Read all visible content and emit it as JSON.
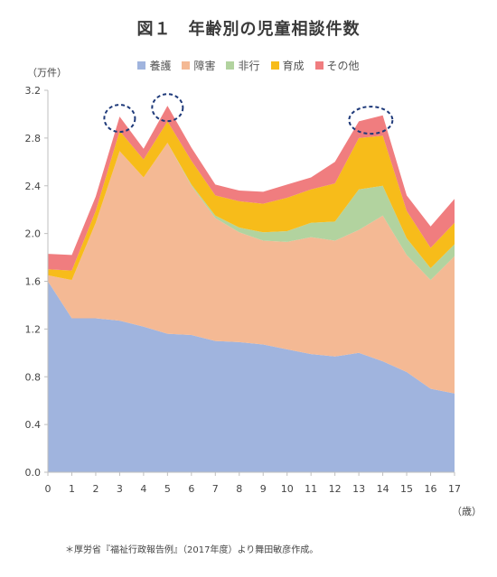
{
  "title": "図１　年齢別の児童相談件数",
  "y_unit": "（万件）",
  "x_unit": "（歳）",
  "note": "＊厚労省『福祉行政報告例』（2017年度）より舞田敏彦作成。",
  "colors": {
    "youngo": "#a0b4de",
    "shougai": "#f4b994",
    "hikou": "#b2d39f",
    "ikusei": "#f7bc1a",
    "sonota": "#f07d7f",
    "circle": "#1f3a7a"
  },
  "chart_data": {
    "type": "area",
    "stacked": true,
    "x": [
      0,
      1,
      2,
      3,
      4,
      5,
      6,
      7,
      8,
      9,
      10,
      11,
      12,
      13,
      14,
      15,
      16,
      17
    ],
    "ylim": [
      0,
      3.2
    ],
    "yticks": [
      "0.0",
      "0.4",
      "0.8",
      "1.2",
      "1.6",
      "2.0",
      "2.4",
      "2.8",
      "3.2"
    ],
    "series": [
      {
        "name": "養護",
        "key": "youngo",
        "values": [
          1.6,
          1.29,
          1.29,
          1.27,
          1.22,
          1.16,
          1.15,
          1.1,
          1.09,
          1.07,
          1.03,
          0.99,
          0.97,
          1.0,
          0.93,
          0.84,
          0.7,
          0.66
        ]
      },
      {
        "name": "障害",
        "key": "shougai",
        "values": [
          0.05,
          0.32,
          0.8,
          1.42,
          1.25,
          1.6,
          1.25,
          1.03,
          0.92,
          0.87,
          0.9,
          0.98,
          0.97,
          1.03,
          1.22,
          0.98,
          0.91,
          1.15
        ]
      },
      {
        "name": "非行",
        "key": "hikou",
        "values": [
          0.0,
          0.0,
          0.0,
          0.0,
          0.0,
          0.0,
          0.01,
          0.02,
          0.04,
          0.07,
          0.09,
          0.12,
          0.16,
          0.34,
          0.25,
          0.14,
          0.1,
          0.1
        ]
      },
      {
        "name": "育成",
        "key": "ikusei",
        "values": [
          0.05,
          0.08,
          0.1,
          0.17,
          0.15,
          0.18,
          0.2,
          0.17,
          0.22,
          0.24,
          0.28,
          0.28,
          0.32,
          0.43,
          0.42,
          0.23,
          0.17,
          0.18
        ]
      },
      {
        "name": "その他",
        "key": "sonota",
        "values": [
          0.13,
          0.13,
          0.12,
          0.12,
          0.09,
          0.13,
          0.11,
          0.09,
          0.09,
          0.1,
          0.11,
          0.1,
          0.18,
          0.14,
          0.17,
          0.13,
          0.18,
          0.2
        ]
      }
    ],
    "highlights": [
      3,
      5,
      13.5
    ]
  }
}
